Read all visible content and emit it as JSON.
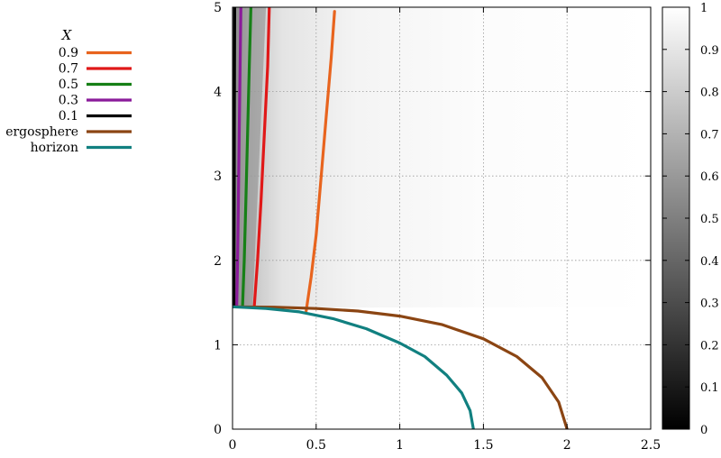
{
  "chart_data": {
    "type": "line",
    "background": "heatmap",
    "xlim": [
      0,
      2.5
    ],
    "ylim": [
      0,
      5
    ],
    "grid": true,
    "x_ticks": [
      "0",
      "0.5",
      "1",
      "1.5",
      "2",
      "2.5"
    ],
    "y_ticks": [
      "0",
      "1",
      "2",
      "3",
      "4",
      "5"
    ],
    "legend": {
      "title": "X",
      "placement": "outside-left-top"
    },
    "colorbar": {
      "range": [
        0,
        1
      ],
      "ticks": [
        "0",
        "0.1",
        "0.2",
        "0.3",
        "0.4",
        "0.5",
        "0.6",
        "0.7",
        "0.8",
        "0.9",
        "1"
      ],
      "colormap": "grayscale-black-to-white"
    },
    "series": [
      {
        "name": "0.9",
        "color": "#e8641e",
        "x": [
          0.44,
          0.47,
          0.5,
          0.53,
          0.56,
          0.59,
          0.61
        ],
        "y": [
          1.4,
          1.8,
          2.3,
          3.0,
          3.7,
          4.4,
          4.95
        ]
      },
      {
        "name": "0.7",
        "color": "#e01818",
        "x": [
          0.13,
          0.15,
          0.17,
          0.19,
          0.21,
          0.22
        ],
        "y": [
          1.45,
          2.0,
          2.7,
          3.5,
          4.3,
          5.0
        ]
      },
      {
        "name": "0.5",
        "color": "#168016",
        "x": [
          0.06,
          0.07,
          0.08,
          0.09,
          0.1,
          0.11
        ],
        "y": [
          1.45,
          2.0,
          2.7,
          3.5,
          4.3,
          5.0
        ]
      },
      {
        "name": "0.3",
        "color": "#8a1a9a",
        "x": [
          0.025,
          0.03,
          0.035,
          0.04,
          0.045,
          0.05
        ],
        "y": [
          1.45,
          2.0,
          2.7,
          3.5,
          4.3,
          5.0
        ]
      },
      {
        "name": "0.1",
        "color": "#000000",
        "x": [
          0.008,
          0.009,
          0.01,
          0.011,
          0.012,
          0.013
        ],
        "y": [
          1.45,
          2.0,
          2.7,
          3.5,
          4.3,
          5.0
        ]
      },
      {
        "name": "ergosphere",
        "color": "#8b4513",
        "x": [
          0,
          0.25,
          0.5,
          0.75,
          1.0,
          1.25,
          1.5,
          1.7,
          1.85,
          1.95,
          2.0
        ],
        "y": [
          1.45,
          1.446,
          1.43,
          1.4,
          1.34,
          1.24,
          1.07,
          0.86,
          0.61,
          0.32,
          0
        ]
      },
      {
        "name": "horizon",
        "color": "#118080",
        "x": [
          0,
          0.2,
          0.4,
          0.6,
          0.8,
          1.0,
          1.15,
          1.28,
          1.37,
          1.42,
          1.44
        ],
        "y": [
          1.45,
          1.43,
          1.39,
          1.31,
          1.19,
          1.02,
          0.86,
          0.64,
          0.43,
          0.22,
          0
        ]
      }
    ]
  }
}
